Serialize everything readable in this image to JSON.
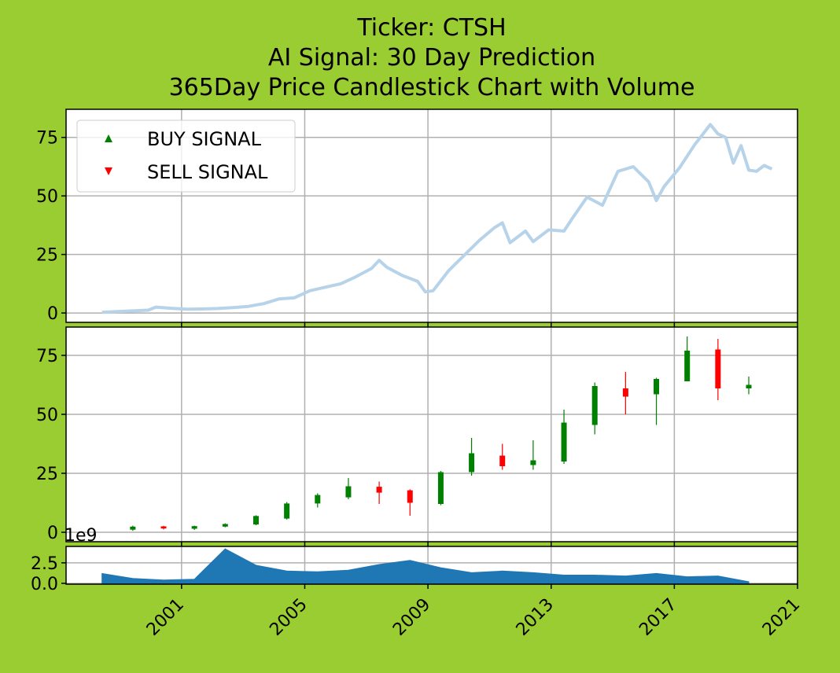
{
  "colors": {
    "background": "#9ACD32",
    "panel": "#ffffff",
    "grid": "#b0b0b0",
    "price_line": "#b7d3e9",
    "up": "#008000",
    "down": "#ff0000",
    "volume": "#1f77b4"
  },
  "chart_data": {
    "type": "candlestick",
    "title_lines": [
      "Ticker: CTSH",
      "AI Signal: 30 Day Prediction",
      "365Day Price Candlestick Chart with Volume"
    ],
    "legend": {
      "placement": "top-left",
      "entries": [
        "BUY SIGNAL",
        "SELL SIGNAL"
      ]
    },
    "grid": true,
    "x_axis": {
      "type": "date",
      "range": [
        "1997-04-01",
        "2021-01-01"
      ],
      "tick_labels": [
        "2001",
        "2005",
        "2009",
        "2013",
        "2017",
        "2021"
      ]
    },
    "price_axis": {
      "range": [
        -4,
        87
      ],
      "tick_labels": [
        "0",
        "25",
        "50",
        "75"
      ]
    },
    "volume_axis": {
      "range": [
        -0.1,
        4.5
      ],
      "tick_labels": [
        "0.0",
        "2.5"
      ],
      "offset_text": "1e9"
    },
    "price_line": [
      [
        "1998-06-01",
        0.3
      ],
      [
        "1998-12-01",
        0.6
      ],
      [
        "1999-06-01",
        0.9
      ],
      [
        "1999-12-01",
        1.2
      ],
      [
        "2000-03-01",
        2.5
      ],
      [
        "2000-09-01",
        2.0
      ],
      [
        "2001-03-01",
        1.6
      ],
      [
        "2001-09-01",
        1.7
      ],
      [
        "2002-03-01",
        1.9
      ],
      [
        "2002-09-01",
        2.3
      ],
      [
        "2003-03-01",
        2.8
      ],
      [
        "2003-09-01",
        4.0
      ],
      [
        "2004-03-01",
        6.0
      ],
      [
        "2004-09-01",
        6.5
      ],
      [
        "2005-03-01",
        9.5
      ],
      [
        "2005-09-01",
        11.0
      ],
      [
        "2006-03-01",
        12.5
      ],
      [
        "2006-09-01",
        15.5
      ],
      [
        "2007-03-01",
        19.0
      ],
      [
        "2007-06-01",
        22.5
      ],
      [
        "2007-09-01",
        19.5
      ],
      [
        "2008-03-01",
        16.0
      ],
      [
        "2008-09-01",
        13.5
      ],
      [
        "2008-12-01",
        9.0
      ],
      [
        "2009-03-01",
        9.5
      ],
      [
        "2009-09-01",
        18.0
      ],
      [
        "2010-03-01",
        24.5
      ],
      [
        "2010-09-01",
        31.0
      ],
      [
        "2011-03-01",
        36.5
      ],
      [
        "2011-06-01",
        38.5
      ],
      [
        "2011-09-01",
        30.0
      ],
      [
        "2012-03-01",
        35.0
      ],
      [
        "2012-06-01",
        30.5
      ],
      [
        "2012-12-01",
        35.5
      ],
      [
        "2013-06-01",
        35.0
      ],
      [
        "2013-09-01",
        40.0
      ],
      [
        "2014-03-01",
        49.5
      ],
      [
        "2014-09-01",
        46.0
      ],
      [
        "2015-03-01",
        60.5
      ],
      [
        "2015-09-01",
        62.5
      ],
      [
        "2016-03-01",
        56.0
      ],
      [
        "2016-06-01",
        48.0
      ],
      [
        "2016-09-01",
        54.0
      ],
      [
        "2017-03-01",
        62.0
      ],
      [
        "2017-09-01",
        72.0
      ],
      [
        "2018-03-01",
        80.5
      ],
      [
        "2018-06-01",
        76.5
      ],
      [
        "2018-09-01",
        75.0
      ],
      [
        "2018-12-01",
        64.0
      ],
      [
        "2019-03-01",
        71.5
      ],
      [
        "2019-06-01",
        61.0
      ],
      [
        "2019-09-01",
        60.5
      ],
      [
        "2019-12-01",
        63.0
      ],
      [
        "2020-03-01",
        61.5
      ]
    ],
    "candles": [
      {
        "date": "1999-06-01",
        "open": 1.1,
        "high": 2.8,
        "low": 0.6,
        "close": 2.4,
        "dir": "up"
      },
      {
        "date": "2000-06-01",
        "open": 2.5,
        "high": 2.7,
        "low": 1.2,
        "close": 1.6,
        "dir": "down"
      },
      {
        "date": "2001-06-01",
        "open": 1.5,
        "high": 2.8,
        "low": 1.0,
        "close": 2.6,
        "dir": "up"
      },
      {
        "date": "2002-06-01",
        "open": 2.4,
        "high": 3.8,
        "low": 2.1,
        "close": 3.5,
        "dir": "up"
      },
      {
        "date": "2003-06-01",
        "open": 3.3,
        "high": 7.2,
        "low": 3.0,
        "close": 6.9,
        "dir": "up"
      },
      {
        "date": "2004-06-01",
        "open": 5.8,
        "high": 12.8,
        "low": 5.4,
        "close": 12.2,
        "dir": "up"
      },
      {
        "date": "2005-06-01",
        "open": 12.2,
        "high": 16.5,
        "low": 10.5,
        "close": 15.8,
        "dir": "up"
      },
      {
        "date": "2006-06-01",
        "open": 14.8,
        "high": 23.0,
        "low": 14.0,
        "close": 19.5,
        "dir": "up"
      },
      {
        "date": "2007-06-01",
        "open": 19.3,
        "high": 21.5,
        "low": 12.0,
        "close": 16.8,
        "dir": "down"
      },
      {
        "date": "2008-06-01",
        "open": 17.8,
        "high": 18.2,
        "low": 7.0,
        "close": 12.5,
        "dir": "down"
      },
      {
        "date": "2009-06-01",
        "open": 12.0,
        "high": 26.0,
        "low": 11.5,
        "close": 25.5,
        "dir": "up"
      },
      {
        "date": "2010-06-01",
        "open": 25.5,
        "high": 40.0,
        "low": 24.0,
        "close": 33.5,
        "dir": "up"
      },
      {
        "date": "2011-06-01",
        "open": 32.5,
        "high": 37.5,
        "low": 26.5,
        "close": 28.0,
        "dir": "down"
      },
      {
        "date": "2012-06-01",
        "open": 28.5,
        "high": 39.0,
        "low": 26.5,
        "close": 30.5,
        "dir": "up"
      },
      {
        "date": "2013-06-01",
        "open": 30.0,
        "high": 52.0,
        "low": 29.0,
        "close": 46.5,
        "dir": "up"
      },
      {
        "date": "2014-06-01",
        "open": 45.5,
        "high": 63.5,
        "low": 41.5,
        "close": 62.0,
        "dir": "up"
      },
      {
        "date": "2015-06-01",
        "open": 61.0,
        "high": 68.0,
        "low": 50.0,
        "close": 57.5,
        "dir": "down"
      },
      {
        "date": "2016-06-01",
        "open": 58.5,
        "high": 65.5,
        "low": 45.5,
        "close": 65.0,
        "dir": "up"
      },
      {
        "date": "2017-06-01",
        "open": 64.0,
        "high": 83.0,
        "low": 64.0,
        "close": 77.0,
        "dir": "up"
      },
      {
        "date": "2018-06-01",
        "open": 77.5,
        "high": 82.0,
        "low": 56.0,
        "close": 61.0,
        "dir": "down"
      },
      {
        "date": "2019-06-01",
        "open": 61.0,
        "high": 66.0,
        "low": 58.5,
        "close": 62.5,
        "dir": "up"
      }
    ],
    "volume": [
      [
        "1998-06-01",
        1.2
      ],
      [
        "1999-06-01",
        0.6
      ],
      [
        "2000-06-01",
        0.4
      ],
      [
        "2001-06-01",
        0.5
      ],
      [
        "2002-06-01",
        4.2
      ],
      [
        "2003-06-01",
        2.2
      ],
      [
        "2004-06-01",
        1.5
      ],
      [
        "2005-06-01",
        1.4
      ],
      [
        "2006-06-01",
        1.6
      ],
      [
        "2007-06-01",
        2.3
      ],
      [
        "2008-06-01",
        2.8
      ],
      [
        "2009-06-01",
        1.9
      ],
      [
        "2010-06-01",
        1.3
      ],
      [
        "2011-06-01",
        1.5
      ],
      [
        "2012-06-01",
        1.3
      ],
      [
        "2013-06-01",
        1.0
      ],
      [
        "2014-06-01",
        1.0
      ],
      [
        "2015-06-01",
        0.9
      ],
      [
        "2016-06-01",
        1.2
      ],
      [
        "2017-06-01",
        0.8
      ],
      [
        "2018-06-01",
        0.9
      ],
      [
        "2019-06-01",
        0.2
      ]
    ]
  }
}
